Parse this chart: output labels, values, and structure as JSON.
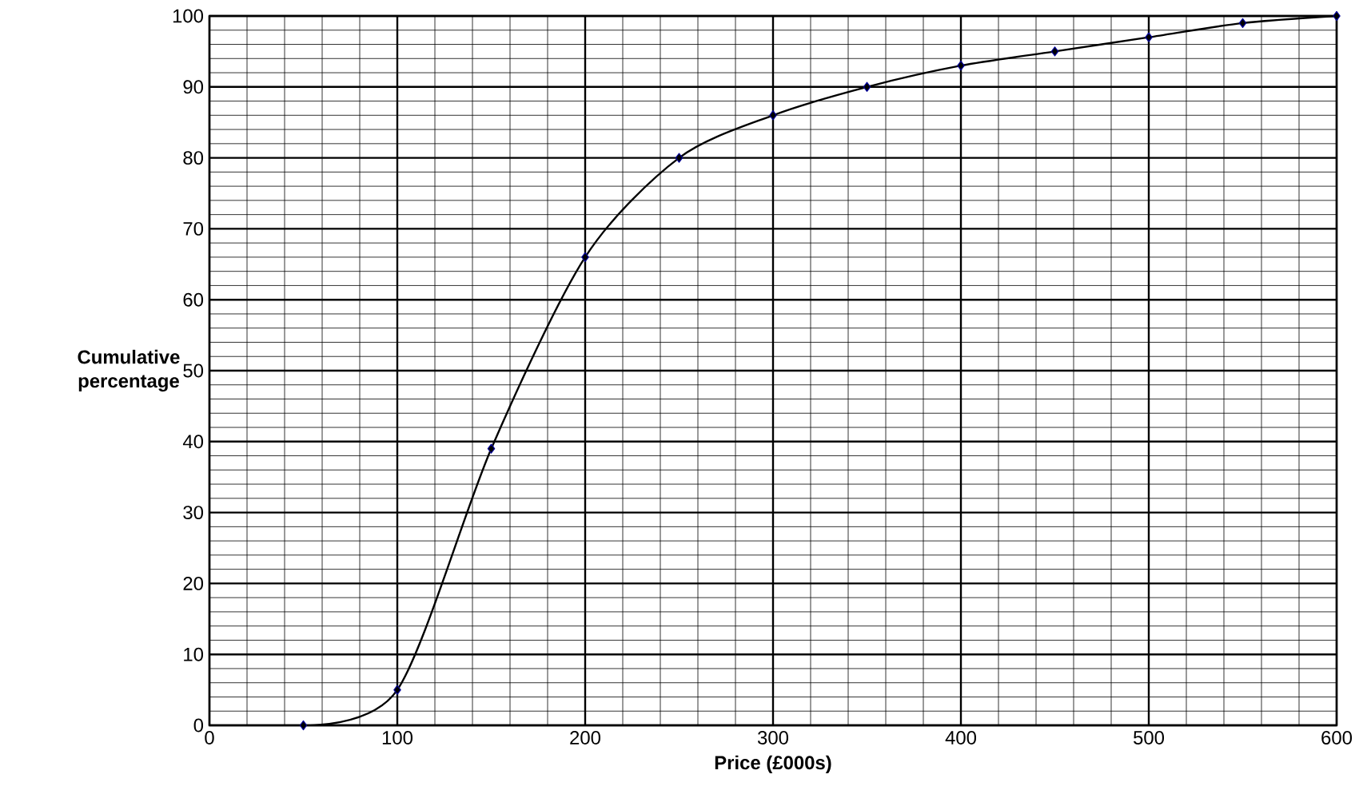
{
  "chart_data": {
    "type": "line",
    "xlabel": "Price (£000s)",
    "ylabel": "Cumulative percentage",
    "x": [
      50,
      100,
      150,
      200,
      250,
      300,
      350,
      400,
      450,
      500,
      550,
      600
    ],
    "series": [
      {
        "color": "#000000",
        "values": [
          0,
          5,
          39,
          66,
          80,
          86,
          90,
          93,
          95,
          97,
          99,
          100
        ]
      }
    ],
    "xlim": [
      0,
      600
    ],
    "ylim": [
      0,
      100
    ],
    "xticks": [
      0,
      100,
      200,
      300,
      400,
      500,
      600
    ],
    "yticks": [
      0,
      10,
      20,
      30,
      40,
      50,
      60,
      70,
      80,
      90,
      100
    ],
    "grid": true,
    "marker": "diamond",
    "line_style": "solid"
  }
}
